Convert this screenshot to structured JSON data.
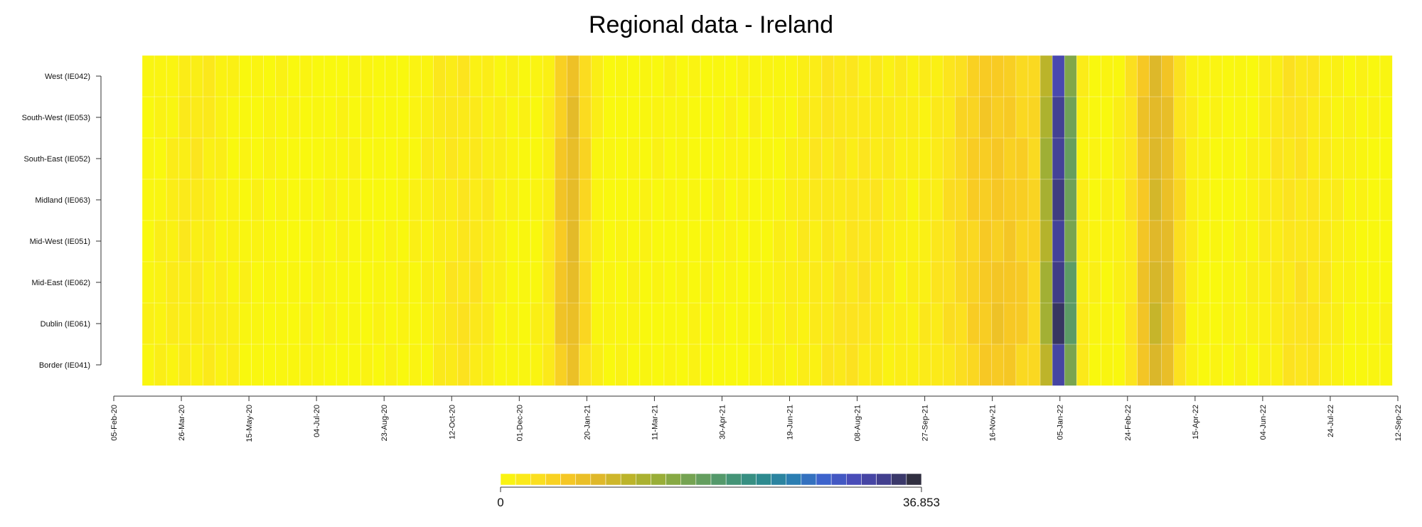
{
  "chart_data": {
    "type": "heatmap",
    "title": "Regional data - Ireland",
    "rows": [
      "West (IE042)",
      "South-West (IE053)",
      "South-East (IE052)",
      "Midland (IE063)",
      "Mid-West (IE051)",
      "Mid-East (IE062)",
      "Dublin (IE061)",
      "Border (IE041)"
    ],
    "x_start": "2020-02-05",
    "x_end": "2022-09-12",
    "x_tick_labels": [
      "05-Feb-20",
      "26-Mar-20",
      "15-May-20",
      "04-Jul-20",
      "23-Aug-20",
      "12-Oct-20",
      "01-Dec-20",
      "20-Jan-21",
      "11-Mar-21",
      "30-Apr-21",
      "19-Jun-21",
      "08-Aug-21",
      "27-Sep-21",
      "16-Nov-21",
      "05-Jan-22",
      "24-Feb-22",
      "15-Apr-22",
      "04-Jun-22",
      "24-Jul-22",
      "12-Sep-22"
    ],
    "columns": 103,
    "color_scale": {
      "min": 0,
      "max": 36.853,
      "min_label": "0",
      "max_label": "36.853",
      "colors": [
        "#f9f80e",
        "#fce31f",
        "#f7c824",
        "#e0b82a",
        "#bab42a",
        "#94ad3a",
        "#6ea158",
        "#4a9672",
        "#2d8c8a",
        "#2a7fb0",
        "#3d63cd",
        "#4a4ab6",
        "#403d86",
        "#2b2b2b"
      ]
    },
    "grid": false,
    "legend_position": "bottom"
  }
}
